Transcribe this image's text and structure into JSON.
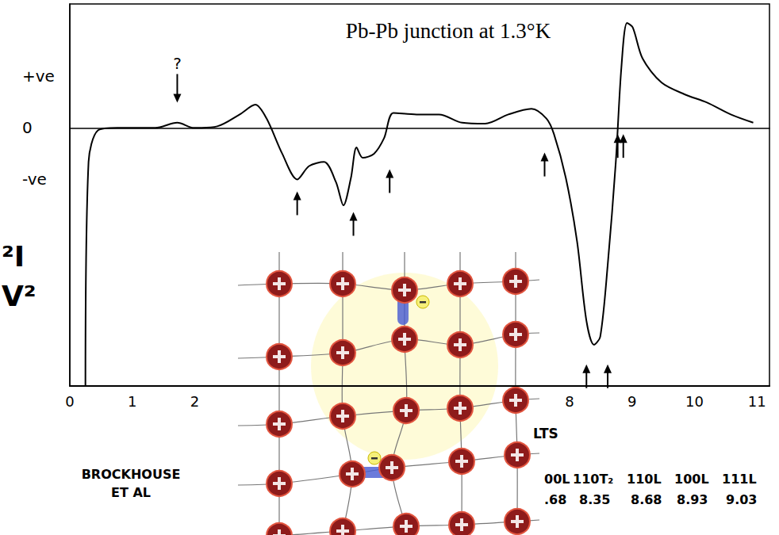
{
  "chart_data": {
    "type": "line",
    "title": "Pb-Pb junction at 1.3°K",
    "y_label_lines": [
      "²I",
      "V²"
    ],
    "x_label": "LTS",
    "credit_lines": [
      "BROCKHOUSE",
      "ET AL"
    ],
    "x": [
      0.25,
      0.3,
      0.45,
      0.76,
      1.37,
      1.72,
      1.99,
      2.36,
      2.72,
      2.97,
      3.15,
      3.4,
      3.64,
      3.83,
      4.07,
      4.26,
      4.38,
      4.5,
      4.59,
      4.69,
      4.87,
      5.03,
      5.18,
      5.55,
      5.91,
      6.28,
      6.65,
      7.02,
      7.39,
      7.63,
      7.75,
      7.94,
      8.12,
      8.27,
      8.39,
      8.49,
      8.61,
      8.74,
      8.83,
      8.92,
      9.01,
      9.17,
      9.47,
      9.84,
      10.2,
      10.58,
      10.94
    ],
    "values": [
      -5.0,
      -0.66,
      -0.05,
      0,
      0,
      0.1,
      0,
      0.03,
      0.26,
      0.45,
      0.18,
      -0.5,
      -1.0,
      -0.74,
      -0.66,
      -1.05,
      -1.5,
      -0.97,
      -0.38,
      -0.58,
      -0.5,
      -0.2,
      0.29,
      0.26,
      0.26,
      0.1,
      0.08,
      0.26,
      0.37,
      0.18,
      -0.12,
      -0.97,
      -2.2,
      -3.74,
      -4.2,
      -4.05,
      -2.66,
      -0.66,
      1.18,
      2.03,
      1.95,
      1.34,
      0.88,
      0.65,
      0.49,
      0.26,
      0.1
    ],
    "color": "#000000",
    "xlim": [
      0,
      11.2
    ],
    "xticks": [
      0,
      1,
      2,
      8,
      9,
      10,
      11
    ],
    "ylim": [
      -5,
      2.4
    ],
    "yticks": [
      {
        "value": -1,
        "label": "-ve"
      },
      {
        "value": 0,
        "label": "0"
      },
      {
        "value": 1,
        "label": "+ve"
      }
    ],
    "grid": false,
    "arrows": [
      {
        "x": 3.64,
        "y": -1.23,
        "direction": "up"
      },
      {
        "x": 4.54,
        "y": -1.63,
        "direction": "up"
      },
      {
        "x": 5.12,
        "y": -0.8,
        "direction": "up"
      },
      {
        "x": 7.6,
        "y": -0.48,
        "direction": "up"
      },
      {
        "x": 8.27,
        "y": -4.58,
        "direction": "up"
      },
      {
        "x": 8.61,
        "y": -4.58,
        "direction": "up"
      },
      {
        "x": 8.77,
        "y": -0.12,
        "direction": "up"
      },
      {
        "x": 8.86,
        "y": -0.12,
        "direction": "up"
      }
    ],
    "annotations": [
      {
        "text": "?",
        "x": 1.72,
        "y": 0.49,
        "direction": "down"
      }
    ],
    "phonon_table": {
      "modes": [
        "00L",
        "110T₂",
        "110L",
        "100L",
        "111L"
      ],
      "energies": [
        ".68",
        "8.35",
        "8.68",
        "8.93",
        "9.03"
      ]
    }
  }
}
